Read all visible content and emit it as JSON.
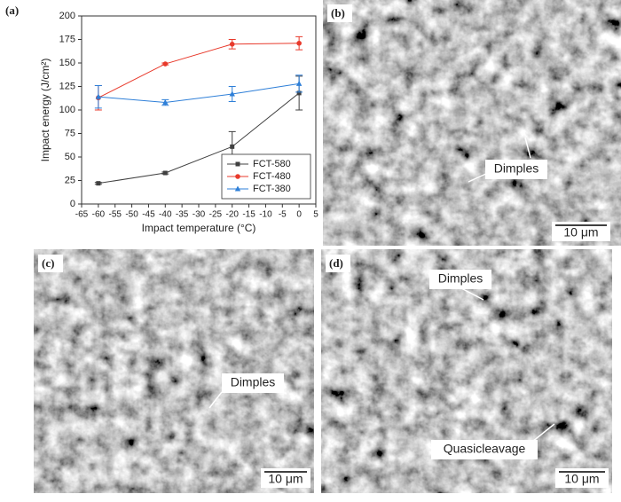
{
  "chart_data": {
    "type": "line",
    "x_label": "Impact  temperature (°C)",
    "y_label": "Impact energy (J/cm²)",
    "x": [
      -60,
      -40,
      -20,
      0
    ],
    "series": [
      {
        "name": "FCT-580",
        "color": "#404040",
        "marker": "square",
        "values": [
          22,
          33,
          61,
          118
        ],
        "errors": [
          1,
          1,
          16,
          18
        ]
      },
      {
        "name": "FCT-480",
        "color": "#e8392b",
        "marker": "circle",
        "values": [
          113,
          149,
          170,
          171
        ],
        "errors": [
          13,
          1,
          5,
          7
        ]
      },
      {
        "name": "FCT-380",
        "color": "#2e7fd8",
        "marker": "triangle",
        "values": [
          114,
          108,
          117,
          128
        ],
        "errors": [
          12,
          3,
          8,
          9
        ]
      }
    ],
    "xlim": [
      -65,
      5
    ],
    "xticks": [
      -65,
      -60,
      -55,
      -50,
      -45,
      -40,
      -35,
      -30,
      -25,
      -20,
      -15,
      -10,
      -5,
      0,
      5
    ],
    "ylim": [
      0,
      200
    ],
    "yticks": [
      0,
      25,
      50,
      75,
      100,
      125,
      150,
      175,
      200
    ],
    "legend": "lower right",
    "grid": false
  },
  "panel_labels": [
    "(a)",
    "(b)",
    "(c)",
    "(d)"
  ],
  "images": [
    {
      "annotations": [
        "Dimples"
      ],
      "scale_bar": "10 μm"
    },
    {
      "annotations": [
        "Dimples"
      ],
      "scale_bar": "10 μm"
    },
    {
      "annotations": [
        "Dimples",
        "Quasicleavage"
      ],
      "scale_bar": "10 μm"
    }
  ]
}
